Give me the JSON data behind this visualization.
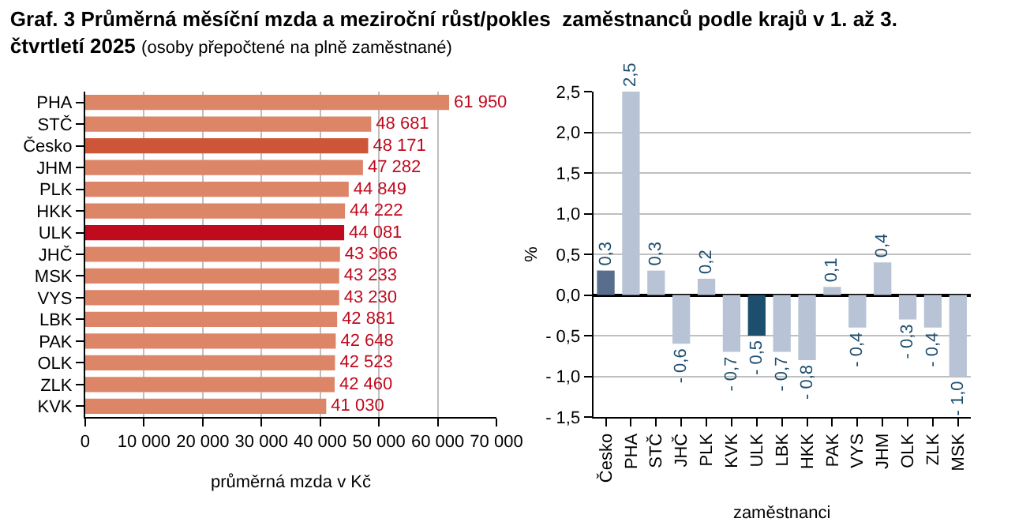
{
  "chart_data": [
    {
      "type": "bar",
      "orientation": "horizontal",
      "title": "Graf. 3 Průměrná měsíční mzda a meziroční růst/pokles  zaměstnanců podle krajů v 1. až 3. čtvrtletí 2025",
      "subtitle": "(osoby přepočtené na plně zaměstnané)",
      "xlabel": "průměrná mzda v Kč",
      "categories": [
        "PHA",
        "STČ",
        "Česko",
        "JHM",
        "PLK",
        "HKK",
        "ULK",
        "JHČ",
        "MSK",
        "VYS",
        "LBK",
        "PAK",
        "OLK",
        "ZLK",
        "KVK"
      ],
      "values": [
        61950,
        48681,
        48171,
        47282,
        44849,
        44222,
        44081,
        43366,
        43233,
        43230,
        42881,
        42648,
        42523,
        42460,
        41030
      ],
      "value_labels": [
        "61 950",
        "48 681",
        "48 171",
        "47 282",
        "44 849",
        "44 222",
        "44 081",
        "43 366",
        "43 233",
        "43 230",
        "42 881",
        "42 648",
        "42 523",
        "42 460",
        "41 030"
      ],
      "colors": [
        "#dc8567",
        "#dc8567",
        "#cd5638",
        "#dc8567",
        "#dc8567",
        "#dc8567",
        "#c00a1e",
        "#dc8567",
        "#dc8567",
        "#dc8567",
        "#dc8567",
        "#dc8567",
        "#dc8567",
        "#dc8567",
        "#dc8567"
      ],
      "xlim": [
        0,
        70000
      ],
      "xticks": [
        0,
        {
          "value": 10000,
          "label": "10 000"
        },
        {
          "value": 20000,
          "label": "20 000"
        },
        {
          "value": 30000,
          "label": "30 000"
        },
        {
          "value": 40000,
          "label": "40 000"
        },
        {
          "value": 50000,
          "label": "50 000"
        },
        {
          "value": 60000,
          "label": "60 000"
        },
        {
          "value": 70000,
          "label": "70 000"
        }
      ],
      "grid": "x"
    },
    {
      "type": "bar",
      "xlabel": "zaměstnanci",
      "ylabel": "%",
      "categories": [
        "Česko",
        "PHA",
        "STČ",
        "JHČ",
        "PLK",
        "KVK",
        "ULK",
        "LBK",
        "HKK",
        "PAK",
        "VYS",
        "JHM",
        "OLK",
        "ZLK",
        "MSK"
      ],
      "values": [
        0.3,
        2.5,
        0.3,
        -0.6,
        0.2,
        -0.7,
        -0.5,
        -0.7,
        -0.8,
        0.1,
        -0.4,
        0.4,
        -0.3,
        -0.4,
        -1.0
      ],
      "value_labels": [
        "0,3",
        "2,5",
        "0,3",
        "- 0,6",
        "0,2",
        "- 0,7",
        "- 0,5",
        "- 0,7",
        "- 0,8",
        "0,1",
        "- 0,4",
        "0,4",
        "- 0,3",
        "- 0,4",
        "- 1,0"
      ],
      "colors": [
        "#596e8c",
        "#b8c4d6",
        "#b8c4d6",
        "#b8c4d6",
        "#b8c4d6",
        "#b8c4d6",
        "#1d4e6e",
        "#b8c4d6",
        "#b8c4d6",
        "#b8c4d6",
        "#b8c4d6",
        "#b8c4d6",
        "#b8c4d6",
        "#b8c4d6",
        "#b8c4d6"
      ],
      "ylim": [
        -1.5,
        2.5
      ],
      "yticks": [
        {
          "value": -1.5,
          "label": "- 1,5"
        },
        {
          "value": -1.0,
          "label": "- 1,0"
        },
        {
          "value": -0.5,
          "label": "- 0,5"
        },
        {
          "value": 0,
          "label": "0,0"
        },
        {
          "value": 0.5,
          "label": "0,5"
        },
        {
          "value": 1.0,
          "label": "1,0"
        },
        {
          "value": 1.5,
          "label": "1,5"
        },
        {
          "value": 2.0,
          "label": "2,0"
        },
        {
          "value": 2.5,
          "label": "2,5"
        }
      ],
      "grid": "y"
    }
  ]
}
